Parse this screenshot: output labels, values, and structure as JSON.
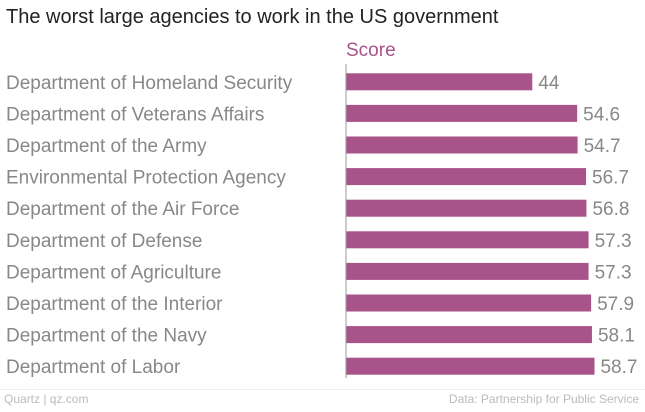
{
  "chart_data": {
    "type": "bar",
    "orientation": "horizontal",
    "title": "The worst large agencies to work in the US government",
    "series_label": "Score",
    "categories": [
      "Department of Homeland Security",
      "Department of Veterans Affairs",
      "Department of the Army",
      "Environmental Protection Agency",
      "Department of the Air Force",
      "Department of Defense",
      "Department of Agriculture",
      "Department of the Interior",
      "Department of the Navy",
      "Department of Labor"
    ],
    "values": [
      44,
      54.6,
      54.7,
      56.7,
      56.8,
      57.3,
      57.3,
      57.9,
      58.1,
      58.7
    ],
    "value_labels": [
      "44",
      "54.6",
      "54.7",
      "56.7",
      "56.8",
      "57.3",
      "57.3",
      "57.9",
      "58.1",
      "58.7"
    ],
    "xlim": [
      0,
      60
    ],
    "grid": false,
    "bar_color": "#a8538a",
    "series_label_color": "#a8538a"
  },
  "footer": {
    "source": "Quartz | qz.com",
    "data_credit": "Data: Partnership for Public Service"
  }
}
